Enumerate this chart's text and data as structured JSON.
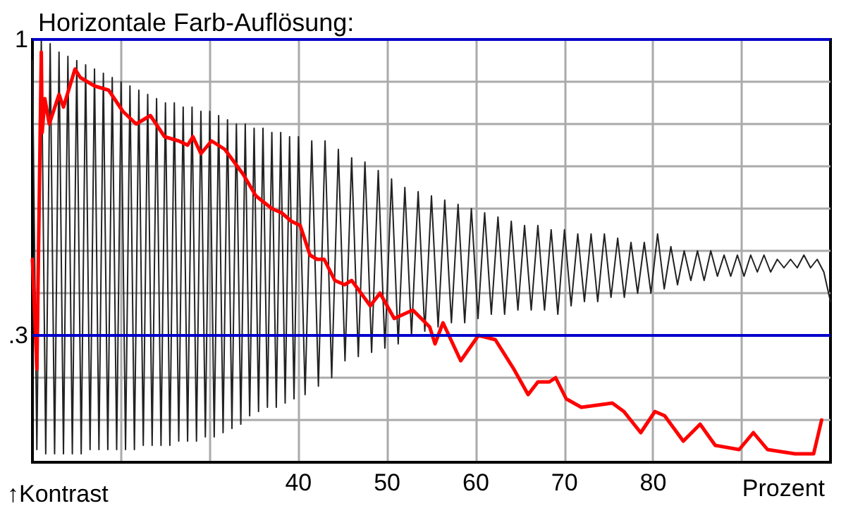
{
  "chart_data": {
    "type": "line",
    "title": "Horizontale Farb-Auflösung:",
    "xlabel": "Prozent",
    "ylabel": "↑Kontrast",
    "xlim": [
      10,
      100
    ],
    "ylim": [
      0,
      1
    ],
    "xticks": [
      {
        "value": 20,
        "label": null
      },
      {
        "value": 30,
        "label": null
      },
      40,
      50,
      60,
      70,
      80,
      {
        "value": 90,
        "label": null
      }
    ],
    "yticks": [
      {
        "value": 0,
        "label": null
      },
      {
        "value": 0.1,
        "label": null
      },
      {
        "value": 0.2,
        "label": null
      },
      {
        "value": 0.3,
        "label": ".3"
      },
      {
        "value": 0.4,
        "label": null
      },
      {
        "value": 0.5,
        "label": null
      },
      {
        "value": 0.6,
        "label": null
      },
      {
        "value": 0.7,
        "label": null
      },
      {
        "value": 0.8,
        "label": null
      },
      {
        "value": 0.9,
        "label": null
      },
      1
    ],
    "grid": true,
    "marker": "none",
    "ref_lines": [
      {
        "axis": "y",
        "value": 1,
        "color": "#0000cc"
      },
      {
        "axis": "y",
        "value": 0.3,
        "color": "#0000cc"
      }
    ],
    "series": [
      {
        "color": "#222222",
        "x": [
          10,
          10.5,
          11,
          11.5,
          12,
          12.5,
          13,
          13.5,
          14,
          14.5,
          15,
          15.5,
          16,
          16.5,
          17,
          17.5,
          18,
          18.5,
          19,
          19.5,
          20,
          20.5,
          21,
          21.5,
          22,
          22.5,
          23,
          23.5,
          24,
          24.5,
          25,
          25.5,
          26,
          26.5,
          27,
          27.5,
          28,
          28.5,
          29,
          29.5,
          30,
          30.5,
          31,
          31.5,
          32,
          32.5,
          33,
          33.5,
          34,
          34.5,
          35,
          35.5,
          36,
          36.5,
          37,
          37.5,
          38,
          38.5,
          39,
          39.5,
          40,
          40.75,
          41.5,
          42.25,
          43,
          43.75,
          44.5,
          45.25,
          46,
          46.75,
          47.5,
          48.25,
          49,
          49.75,
          50.5,
          51.25,
          52,
          52.75,
          53.5,
          54.25,
          55,
          55.75,
          56.5,
          57.25,
          58,
          58.75,
          59.5,
          60.25,
          61,
          61.75,
          62.5,
          63.25,
          64,
          64.75,
          65.5,
          66.25,
          67,
          67.75,
          68.5,
          69.25,
          70,
          70.75,
          71.5,
          72.25,
          73,
          73.75,
          74.5,
          75.25,
          76,
          76.75,
          77.5,
          78.25,
          79,
          79.75,
          80.5,
          81.25,
          82,
          82.75,
          83.5,
          84.25,
          85,
          85.75,
          86.5,
          87.25,
          88,
          88.75,
          89.5,
          90.25,
          91,
          91.75,
          92.5,
          93.25,
          94,
          94.75,
          95.5,
          96.25,
          97,
          97.75,
          98.5,
          99.25,
          100
        ],
        "values": [
          0.95,
          0.03,
          1.0,
          0.02,
          0.99,
          0.02,
          0.97,
          0.02,
          0.96,
          0.02,
          0.95,
          0.02,
          0.94,
          0.03,
          0.93,
          0.03,
          0.92,
          0.03,
          0.91,
          0.03,
          0.9,
          0.03,
          0.89,
          0.03,
          0.88,
          0.04,
          0.87,
          0.04,
          0.86,
          0.04,
          0.85,
          0.04,
          0.85,
          0.05,
          0.84,
          0.05,
          0.84,
          0.05,
          0.83,
          0.06,
          0.83,
          0.06,
          0.82,
          0.07,
          0.81,
          0.08,
          0.8,
          0.09,
          0.8,
          0.11,
          0.79,
          0.12,
          0.79,
          0.13,
          0.78,
          0.13,
          0.78,
          0.14,
          0.77,
          0.15,
          0.77,
          0.16,
          0.76,
          0.18,
          0.76,
          0.2,
          0.74,
          0.24,
          0.72,
          0.25,
          0.71,
          0.26,
          0.69,
          0.27,
          0.67,
          0.28,
          0.65,
          0.3,
          0.64,
          0.31,
          0.63,
          0.32,
          0.62,
          0.33,
          0.61,
          0.33,
          0.6,
          0.34,
          0.59,
          0.35,
          0.58,
          0.35,
          0.57,
          0.36,
          0.56,
          0.36,
          0.56,
          0.36,
          0.55,
          0.35,
          0.55,
          0.37,
          0.54,
          0.38,
          0.54,
          0.38,
          0.54,
          0.39,
          0.53,
          0.39,
          0.52,
          0.4,
          0.52,
          0.4,
          0.54,
          0.41,
          0.51,
          0.42,
          0.5,
          0.43,
          0.5,
          0.43,
          0.5,
          0.44,
          0.49,
          0.44,
          0.49,
          0.44,
          0.49,
          0.45,
          0.49,
          0.45,
          0.48,
          0.46,
          0.48,
          0.46,
          0.49,
          0.46,
          0.48,
          0.45,
          0.38
        ]
      },
      {
        "color": "#ff0000",
        "x": [
          10.0,
          10.5,
          11.0,
          11.1,
          11.4,
          11.9,
          13.0,
          13.5,
          14.8,
          15.4,
          17.0,
          18.6,
          20.2,
          21.7,
          23.3,
          24.9,
          26.5,
          27.5,
          28.1,
          29.0,
          30.2,
          31.7,
          33.8,
          35.2,
          37.0,
          38.1,
          39.2,
          40.2,
          41.3,
          42.1,
          42.9,
          44.1,
          45.2,
          46.0,
          48.1,
          49.2,
          50.8,
          52.9,
          54.8,
          55.4,
          56.3,
          58.3,
          60.3,
          62.2,
          64.3,
          65.9,
          67.0,
          68.3,
          69.0,
          70.2,
          71.9,
          75.4,
          76.7,
          78.6,
          80.2,
          81.3,
          83.4,
          85.3,
          87.0,
          89.7,
          91.3,
          92.9,
          96.0,
          98.1,
          99.0
        ],
        "values": [
          0.48,
          0.22,
          0.97,
          0.78,
          0.86,
          0.8,
          0.87,
          0.84,
          0.93,
          0.91,
          0.89,
          0.88,
          0.83,
          0.8,
          0.82,
          0.77,
          0.76,
          0.75,
          0.77,
          0.73,
          0.76,
          0.74,
          0.68,
          0.63,
          0.6,
          0.59,
          0.57,
          0.56,
          0.49,
          0.48,
          0.48,
          0.43,
          0.42,
          0.43,
          0.37,
          0.4,
          0.34,
          0.36,
          0.32,
          0.28,
          0.33,
          0.24,
          0.3,
          0.29,
          0.22,
          0.16,
          0.19,
          0.19,
          0.2,
          0.15,
          0.13,
          0.14,
          0.12,
          0.07,
          0.12,
          0.11,
          0.05,
          0.09,
          0.04,
          0.03,
          0.07,
          0.03,
          0.02,
          0.02,
          0.1
        ]
      }
    ]
  }
}
